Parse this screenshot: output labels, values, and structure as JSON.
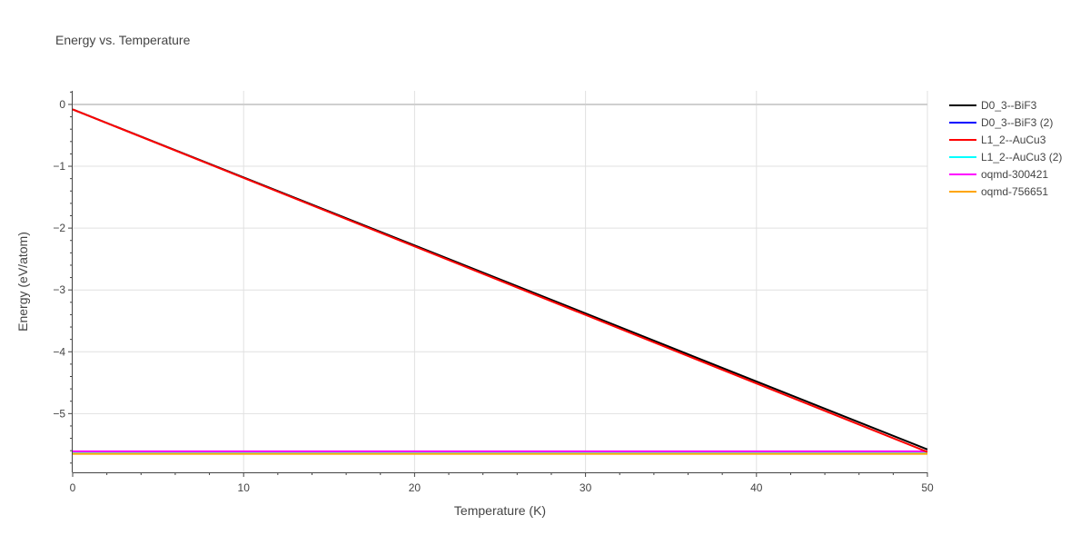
{
  "chart_data": {
    "type": "line",
    "title": "Energy vs. Temperature",
    "xlabel": "Temperature (K)",
    "ylabel": "Energy (eV/atom)",
    "xlim": [
      0,
      50
    ],
    "ylim": [
      -5.95,
      0.22
    ],
    "grid": true,
    "legend_position": "top-right",
    "x_ticks": [
      0,
      10,
      20,
      30,
      40,
      50
    ],
    "y_ticks": [
      0,
      -1,
      -2,
      -3,
      -4,
      -5
    ],
    "x_tick_labels": [
      "0",
      "10",
      "20",
      "30",
      "40",
      "50"
    ],
    "y_tick_labels": [
      "0",
      "−1",
      "−2",
      "−3",
      "−4",
      "−5"
    ],
    "series": [
      {
        "name": "D0_3--BiF3",
        "color": "#000000",
        "x": [
          0,
          50
        ],
        "y": [
          -0.08,
          -5.58
        ]
      },
      {
        "name": "D0_3--BiF3 (2)",
        "color": "#0000ff",
        "x": [
          0,
          50
        ],
        "y": [
          -5.62,
          -5.62
        ]
      },
      {
        "name": "L1_2--AuCu3",
        "color": "#ff0000",
        "x": [
          0,
          50
        ],
        "y": [
          -0.08,
          -5.62
        ]
      },
      {
        "name": "L1_2--AuCu3 (2)",
        "color": "#00ffff",
        "x": [
          0,
          50
        ],
        "y": [
          -5.62,
          -5.62
        ]
      },
      {
        "name": "oqmd-300421",
        "color": "#ff00ff",
        "x": [
          0,
          50
        ],
        "y": [
          -5.61,
          -5.61
        ]
      },
      {
        "name": "oqmd-756651",
        "color": "#ffa500",
        "x": [
          0,
          50
        ],
        "y": [
          -5.65,
          -5.65
        ]
      }
    ]
  }
}
